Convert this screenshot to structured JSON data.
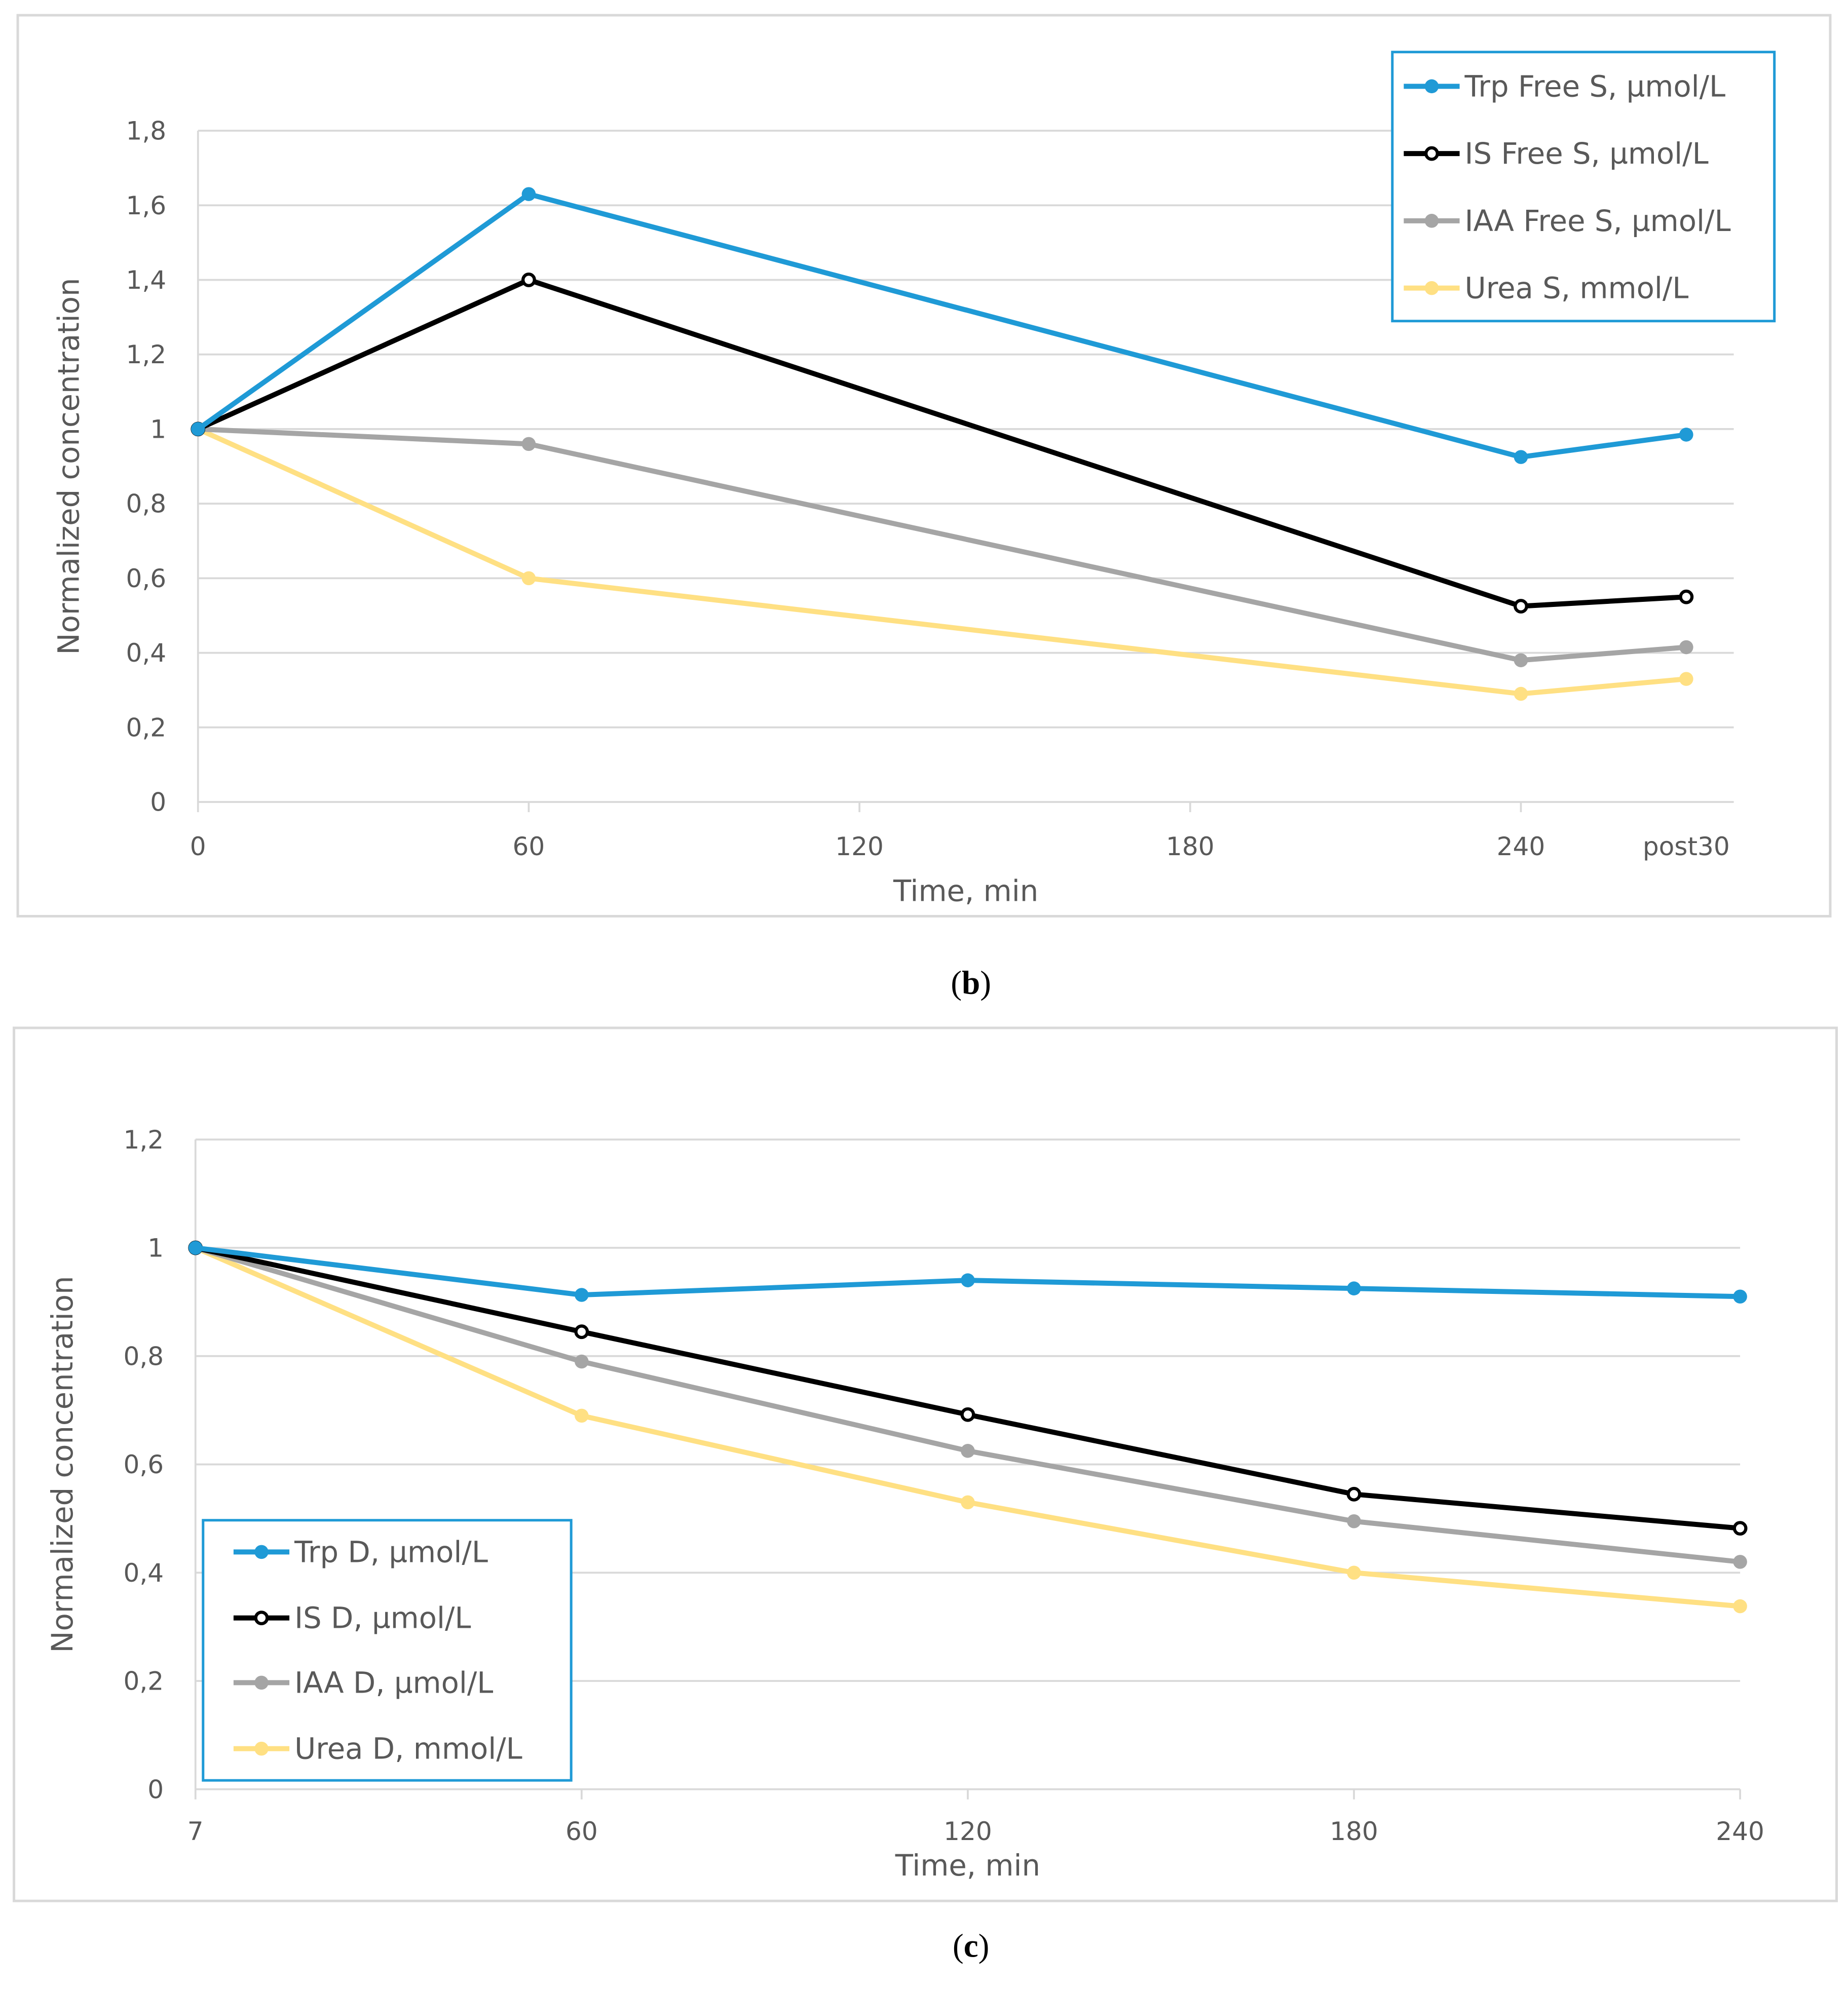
{
  "chart_data": [
    {
      "type": "line",
      "panel": "b",
      "xlabel": "Time, min",
      "ylabel": "Normalized concentration",
      "ylim": [
        0,
        1.8
      ],
      "yticks": [
        "0",
        "0,2",
        "0,4",
        "0,6",
        "0,8",
        "1",
        "1,2",
        "1,4",
        "1,6",
        "1,8"
      ],
      "xaxis_kind": "numeric",
      "xlim": [
        0,
        280
      ],
      "xtick_values": [
        0,
        60,
        120,
        180,
        240,
        270
      ],
      "xtick_labels": [
        "0",
        "60",
        "120",
        "180",
        "240",
        "post30"
      ],
      "x": [
        0,
        60,
        240,
        270
      ],
      "legend_position": "top-right",
      "grid": true,
      "series": [
        {
          "name": "Trp Free S, µmol/L",
          "color": "#1F9AD6",
          "marker": "filled",
          "values": [
            1,
            1.63,
            0.925,
            0.985
          ]
        },
        {
          "name": "IS Free S, µmol/L",
          "color": "#000000",
          "marker": "hollow",
          "values": [
            1,
            1.4,
            0.525,
            0.55
          ]
        },
        {
          "name": "IAA Free S, µmol/L",
          "color": "#A5A5A5",
          "marker": "filled",
          "values": [
            1,
            0.96,
            0.38,
            0.415
          ]
        },
        {
          "name": "Urea S, mmol/L",
          "color": "#FFE083",
          "marker": "filled",
          "values": [
            1,
            0.6,
            0.29,
            0.33
          ]
        }
      ]
    },
    {
      "type": "line",
      "panel": "c",
      "xlabel": "Time, min",
      "ylabel": "Normalized concentration",
      "ylim": [
        0,
        1.2
      ],
      "yticks": [
        "0",
        "0,2",
        "0,4",
        "0,6",
        "0,8",
        "1",
        "1,2"
      ],
      "xaxis_kind": "category",
      "xtick_labels": [
        "7",
        "60",
        "120",
        "180",
        "240"
      ],
      "x": [
        "7",
        "60",
        "120",
        "180",
        "240"
      ],
      "legend_position": "bottom-left",
      "grid": true,
      "series": [
        {
          "name": "Trp D, µmol/L",
          "color": "#1F9AD6",
          "marker": "filled",
          "values": [
            1,
            0.913,
            0.94,
            0.925,
            0.91
          ]
        },
        {
          "name": "IS D, µmol/L",
          "color": "#000000",
          "marker": "hollow",
          "values": [
            1,
            0.845,
            0.692,
            0.545,
            0.482
          ]
        },
        {
          "name": "IAA D, µmol/L",
          "color": "#A5A5A5",
          "marker": "filled",
          "values": [
            1,
            0.79,
            0.625,
            0.495,
            0.42
          ]
        },
        {
          "name": "Urea D, mmol/L",
          "color": "#FFE083",
          "marker": "filled",
          "values": [
            1,
            0.69,
            0.53,
            0.4,
            0.338
          ]
        }
      ]
    }
  ],
  "captions": {
    "b": "b",
    "c": "c"
  }
}
